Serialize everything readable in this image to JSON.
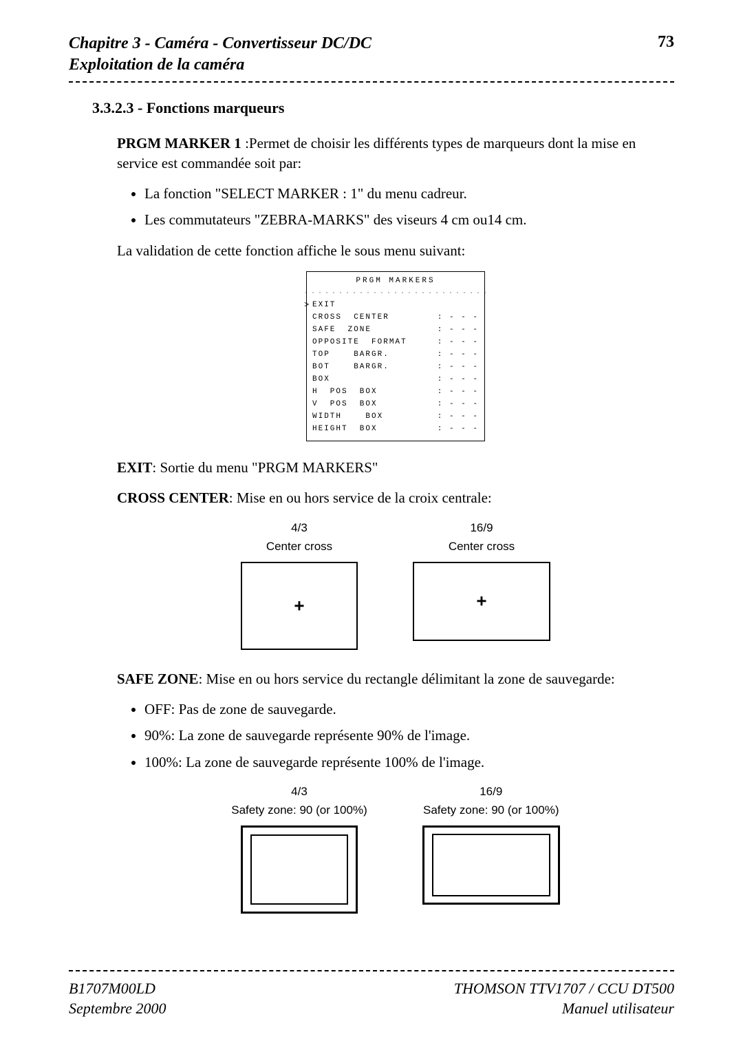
{
  "header": {
    "chapter_line": "Chapitre 3 - Caméra - Convertisseur DC/DC",
    "subtitle_line": "Exploitation de la caméra",
    "page_number": "73"
  },
  "section": {
    "number_title": "3.3.2.3 - Fonctions marqueurs"
  },
  "prgm_marker": {
    "label": "PRGM MARKER 1",
    "desc": " :Permet de choisir les différents types de marqueurs dont la mise en service est commandée soit par:"
  },
  "marker_bullets": [
    "La fonction \"SELECT MARKER : 1\" du menu cadreur.",
    "Les commutateurs \"ZEBRA-MARKS\" des viseurs 4 cm ou14 cm."
  ],
  "validation_text": "La validation de cette fonction affiche le sous menu suivant:",
  "menu": {
    "title": "PRGM  MARKERS",
    "rows": [
      {
        "label": "EXIT",
        "value": ""
      },
      {
        "label": "CROSS  CENTER",
        "value": ": - - -"
      },
      {
        "label": "SAFE  ZONE",
        "value": ": - - -"
      },
      {
        "label": "OPPOSITE  FORMAT",
        "value": ": - - -"
      },
      {
        "label": "TOP    BARGR.",
        "value": ": - - -"
      },
      {
        "label": "BOT    BARGR.",
        "value": ": - - -"
      },
      {
        "label": "BOX",
        "value": ": - - -"
      },
      {
        "label": "H  POS  BOX",
        "value": ": - - -"
      },
      {
        "label": "V  POS  BOX",
        "value": ": - - -"
      },
      {
        "label": "WIDTH    BOX",
        "value": ": - - -"
      },
      {
        "label": "HEIGHT  BOX",
        "value": ": - - -"
      }
    ],
    "arrow": ">"
  },
  "exit": {
    "label": "EXIT",
    "desc": ": Sortie du menu \"PRGM MARKERS\""
  },
  "cross_center": {
    "label": "CROSS CENTER",
    "desc": ": Mise en ou hors service de la croix centrale:"
  },
  "cc_fig": {
    "left_ratio": "4/3",
    "left_caption": "Center cross",
    "right_ratio": "16/9",
    "right_caption": "Center cross",
    "plus": "+"
  },
  "safe_zone": {
    "label": "SAFE ZONE",
    "desc": ": Mise en ou hors service du rectangle délimitant la zone de sauvegarde:"
  },
  "sz_bullets": [
    {
      "b": "OFF",
      "t": ": Pas de zone de sauvegarde."
    },
    {
      "b": "90%",
      "t": ": La zone de sauvegarde représente 90% de l'image."
    },
    {
      "b": "100%",
      "t": ": La zone de sauvegarde représente 100% de l'image."
    }
  ],
  "sz_fig": {
    "left_ratio": "4/3",
    "left_caption": "Safety zone: 90 (or 100%)",
    "right_ratio": "16/9",
    "right_caption": "Safety zone: 90 (or 100%)"
  },
  "footer": {
    "left_line1": "B1707M00LD",
    "left_line2": "Septembre 2000",
    "right_line1": "THOMSON TTV1707 / CCU DT500",
    "right_line2": "Manuel utilisateur"
  }
}
